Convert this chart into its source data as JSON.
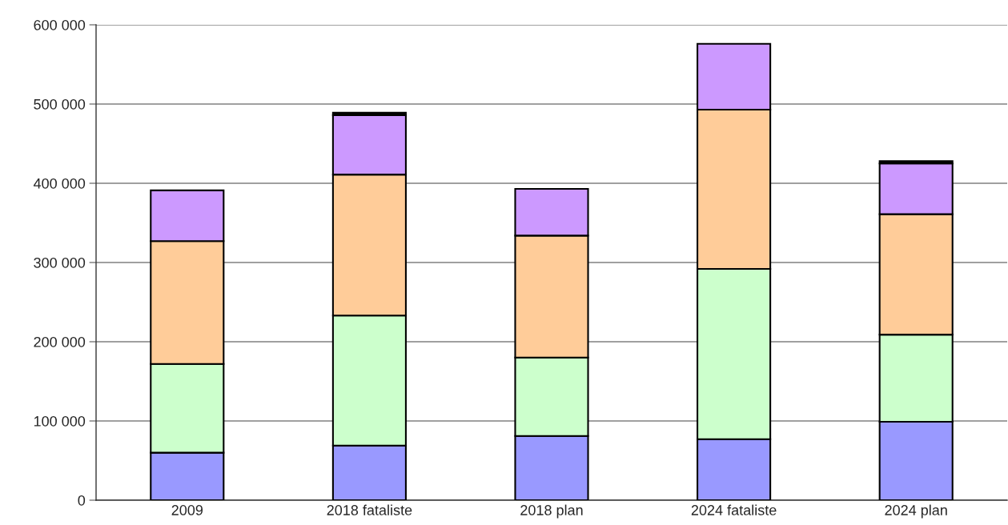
{
  "chart_data": {
    "type": "bar",
    "stacked": true,
    "categories": [
      "2009",
      "2018 fataliste",
      "2018 plan",
      "2024 fataliste",
      "2024 plan"
    ],
    "series": [
      {
        "color": "#9999ff",
        "values": [
          60000,
          69000,
          81000,
          77000,
          99000
        ]
      },
      {
        "color": "#ccffcc",
        "values": [
          112000,
          164000,
          99000,
          215000,
          110000
        ]
      },
      {
        "color": "#ffcc99",
        "values": [
          155000,
          178000,
          154000,
          201000,
          152000
        ]
      },
      {
        "color": "#cc99ff",
        "values": [
          64000,
          75000,
          59000,
          83000,
          64000
        ]
      },
      {
        "color": "#000000",
        "values": [
          null,
          3000,
          null,
          null,
          3000
        ]
      }
    ],
    "ylim": [
      0,
      600000
    ],
    "yticks": [
      {
        "value": 0,
        "label": "0"
      },
      {
        "value": 100000,
        "label": "100 000"
      },
      {
        "value": 200000,
        "label": "200 000"
      },
      {
        "value": 300000,
        "label": "300 000"
      },
      {
        "value": 400000,
        "label": "400 000"
      },
      {
        "value": 500000,
        "label": "500 000"
      },
      {
        "value": 600000,
        "label": "600 000"
      }
    ],
    "grid": "y"
  }
}
